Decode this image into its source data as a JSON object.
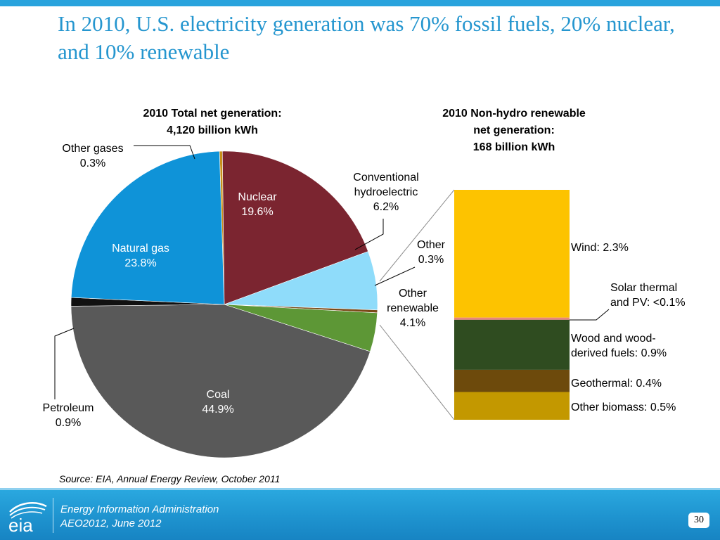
{
  "slide": {
    "title": "In 2010, U.S. electricity generation was 70% fossil fuels, 20% nuclear, and 10% renewable",
    "source": "Source:  EIA, Annual Energy Review, October  2011",
    "footer_line1": "Energy Information Administration",
    "footer_line2": "AEO2012, June 2012",
    "page_number": "30",
    "logo_text": "eia"
  },
  "chart_data": [
    {
      "type": "pie",
      "title_line1": "2010 Total net generation:",
      "title_line2": "4,120 billion kWh",
      "slices": [
        {
          "name": "Other gases",
          "value": 0.3,
          "label": "0.3%",
          "color": "#c8901a"
        },
        {
          "name": "Nuclear",
          "value": 19.6,
          "label": "19.6%",
          "color": "#7b2530"
        },
        {
          "name": "Conventional hydroelectric",
          "value": 6.2,
          "label": "6.2%",
          "color": "#8fdcfa"
        },
        {
          "name": "Other",
          "value": 0.3,
          "label": "0.3%",
          "color": "#7a4a18"
        },
        {
          "name": "Other renewable",
          "value": 4.1,
          "label": "4.1%",
          "color": "#5d9736"
        },
        {
          "name": "Coal",
          "value": 44.9,
          "label": "44.9%",
          "color": "#595959"
        },
        {
          "name": "Petroleum",
          "value": 0.9,
          "label": "0.9%",
          "color": "#111111"
        },
        {
          "name": "Natural gas",
          "value": 23.8,
          "label": "23.8%",
          "color": "#0f93d8"
        }
      ]
    },
    {
      "type": "bar",
      "title_line1": "2010 Non-hydro renewable",
      "title_line2": "net generation:",
      "title_line3": "168 billion kWh",
      "segments": [
        {
          "name": "Wind",
          "label": "Wind:  2.3%",
          "value": 2.3,
          "color": "#fdc300"
        },
        {
          "name": "Solar thermal and PV",
          "label_line1": "Solar thermal",
          "label_line2": "and PV: <0.1%",
          "value": 0.04,
          "color": "#e8857a"
        },
        {
          "name": "Wood and wood-derived fuels",
          "label_line1": "Wood and wood-",
          "label_line2": "derived fuels:  0.9%",
          "value": 0.9,
          "color": "#2f4c20"
        },
        {
          "name": "Geothermal",
          "label": "Geothermal:  0.4%",
          "value": 0.4,
          "color": "#6d4a0c"
        },
        {
          "name": "Other biomass",
          "label": "Other biomass:  0.5%",
          "value": 0.5,
          "color": "#c39800"
        }
      ]
    }
  ]
}
